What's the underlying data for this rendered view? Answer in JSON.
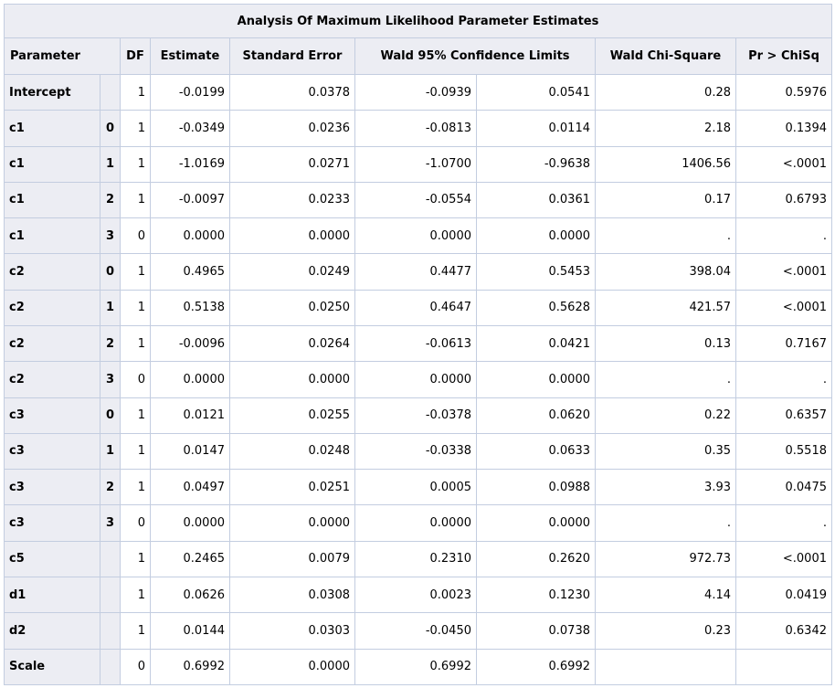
{
  "title": "Analysis Of Maximum Likelihood Parameter Estimates",
  "headers": {
    "parameter": "Parameter",
    "df": "DF",
    "estimate": "Estimate",
    "std_error": "Standard Error",
    "wald_limits": "Wald 95% Confidence Limits",
    "wald_chisq": "Wald Chi-Square",
    "p_value": "Pr > ChiSq"
  },
  "rows": [
    {
      "param": "Intercept",
      "level": "",
      "df": "1",
      "est": "-0.0199",
      "se": "0.0378",
      "lower": "-0.0939",
      "upper": "0.0541",
      "chisq": "0.28",
      "p": "0.5976"
    },
    {
      "param": "c1",
      "level": "0",
      "df": "1",
      "est": "-0.0349",
      "se": "0.0236",
      "lower": "-0.0813",
      "upper": "0.0114",
      "chisq": "2.18",
      "p": "0.1394"
    },
    {
      "param": "c1",
      "level": "1",
      "df": "1",
      "est": "-1.0169",
      "se": "0.0271",
      "lower": "-1.0700",
      "upper": "-0.9638",
      "chisq": "1406.56",
      "p": "<.0001"
    },
    {
      "param": "c1",
      "level": "2",
      "df": "1",
      "est": "-0.0097",
      "se": "0.0233",
      "lower": "-0.0554",
      "upper": "0.0361",
      "chisq": "0.17",
      "p": "0.6793"
    },
    {
      "param": "c1",
      "level": "3",
      "df": "0",
      "est": "0.0000",
      "se": "0.0000",
      "lower": "0.0000",
      "upper": "0.0000",
      "chisq": ".",
      "p": "."
    },
    {
      "param": "c2",
      "level": "0",
      "df": "1",
      "est": "0.4965",
      "se": "0.0249",
      "lower": "0.4477",
      "upper": "0.5453",
      "chisq": "398.04",
      "p": "<.0001"
    },
    {
      "param": "c2",
      "level": "1",
      "df": "1",
      "est": "0.5138",
      "se": "0.0250",
      "lower": "0.4647",
      "upper": "0.5628",
      "chisq": "421.57",
      "p": "<.0001"
    },
    {
      "param": "c2",
      "level": "2",
      "df": "1",
      "est": "-0.0096",
      "se": "0.0264",
      "lower": "-0.0613",
      "upper": "0.0421",
      "chisq": "0.13",
      "p": "0.7167"
    },
    {
      "param": "c2",
      "level": "3",
      "df": "0",
      "est": "0.0000",
      "se": "0.0000",
      "lower": "0.0000",
      "upper": "0.0000",
      "chisq": ".",
      "p": "."
    },
    {
      "param": "c3",
      "level": "0",
      "df": "1",
      "est": "0.0121",
      "se": "0.0255",
      "lower": "-0.0378",
      "upper": "0.0620",
      "chisq": "0.22",
      "p": "0.6357"
    },
    {
      "param": "c3",
      "level": "1",
      "df": "1",
      "est": "0.0147",
      "se": "0.0248",
      "lower": "-0.0338",
      "upper": "0.0633",
      "chisq": "0.35",
      "p": "0.5518"
    },
    {
      "param": "c3",
      "level": "2",
      "df": "1",
      "est": "0.0497",
      "se": "0.0251",
      "lower": "0.0005",
      "upper": "0.0988",
      "chisq": "3.93",
      "p": "0.0475"
    },
    {
      "param": "c3",
      "level": "3",
      "df": "0",
      "est": "0.0000",
      "se": "0.0000",
      "lower": "0.0000",
      "upper": "0.0000",
      "chisq": ".",
      "p": "."
    },
    {
      "param": "c5",
      "level": "",
      "df": "1",
      "est": "0.2465",
      "se": "0.0079",
      "lower": "0.2310",
      "upper": "0.2620",
      "chisq": "972.73",
      "p": "<.0001"
    },
    {
      "param": "d1",
      "level": "",
      "df": "1",
      "est": "0.0626",
      "se": "0.0308",
      "lower": "0.0023",
      "upper": "0.1230",
      "chisq": "4.14",
      "p": "0.0419"
    },
    {
      "param": "d2",
      "level": "",
      "df": "1",
      "est": "0.0144",
      "se": "0.0303",
      "lower": "-0.0450",
      "upper": "0.0738",
      "chisq": "0.23",
      "p": "0.6342"
    },
    {
      "param": "Scale",
      "level": "",
      "df": "0",
      "est": "0.6992",
      "se": "0.0000",
      "lower": "0.6992",
      "upper": "0.6992",
      "chisq": "",
      "p": ""
    }
  ]
}
